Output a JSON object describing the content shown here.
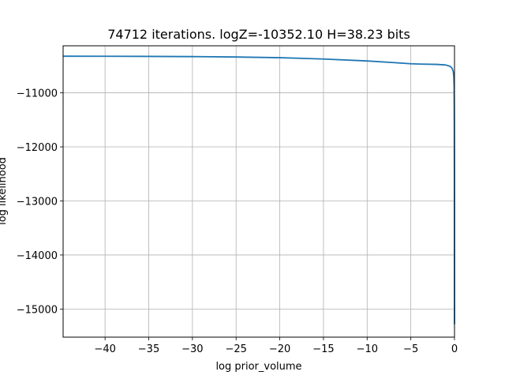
{
  "chart_data": {
    "type": "line",
    "title": "74712 iterations. logZ=-10352.10 H=38.23 bits",
    "xlabel": "log prior_volume",
    "ylabel": "log likelihood",
    "xlim": [
      -44.8,
      0
    ],
    "ylim": [
      -15520,
      -10130
    ],
    "grid": true,
    "xticks": [
      -40,
      -35,
      -30,
      -25,
      -20,
      -15,
      -10,
      -5,
      0
    ],
    "xtick_labels": [
      "−40",
      "−35",
      "−30",
      "−25",
      "−20",
      "−15",
      "−10",
      "−5",
      "0"
    ],
    "yticks": [
      -11000,
      -12000,
      -13000,
      -14000,
      -15000
    ],
    "ytick_labels": [
      "−11000",
      "−12000",
      "−13000",
      "−14000",
      "−15000"
    ],
    "series": [
      {
        "color": "#1f77b4",
        "x": [
          -44.8,
          -40,
          -35,
          -30,
          -25,
          -20,
          -15,
          -10,
          -7,
          -5,
          -4,
          -2,
          -1,
          -0.5,
          -0.3,
          -0.15,
          -0.08,
          -0.04,
          -0.02,
          -0.01,
          0
        ],
        "y": [
          -10323,
          -10324,
          -10326,
          -10330,
          -10337,
          -10350,
          -10375,
          -10410,
          -10440,
          -10462,
          -10468,
          -10474,
          -10485,
          -10510,
          -10540,
          -10600,
          -10700,
          -10900,
          -11500,
          -12500,
          -15280
        ]
      }
    ]
  }
}
